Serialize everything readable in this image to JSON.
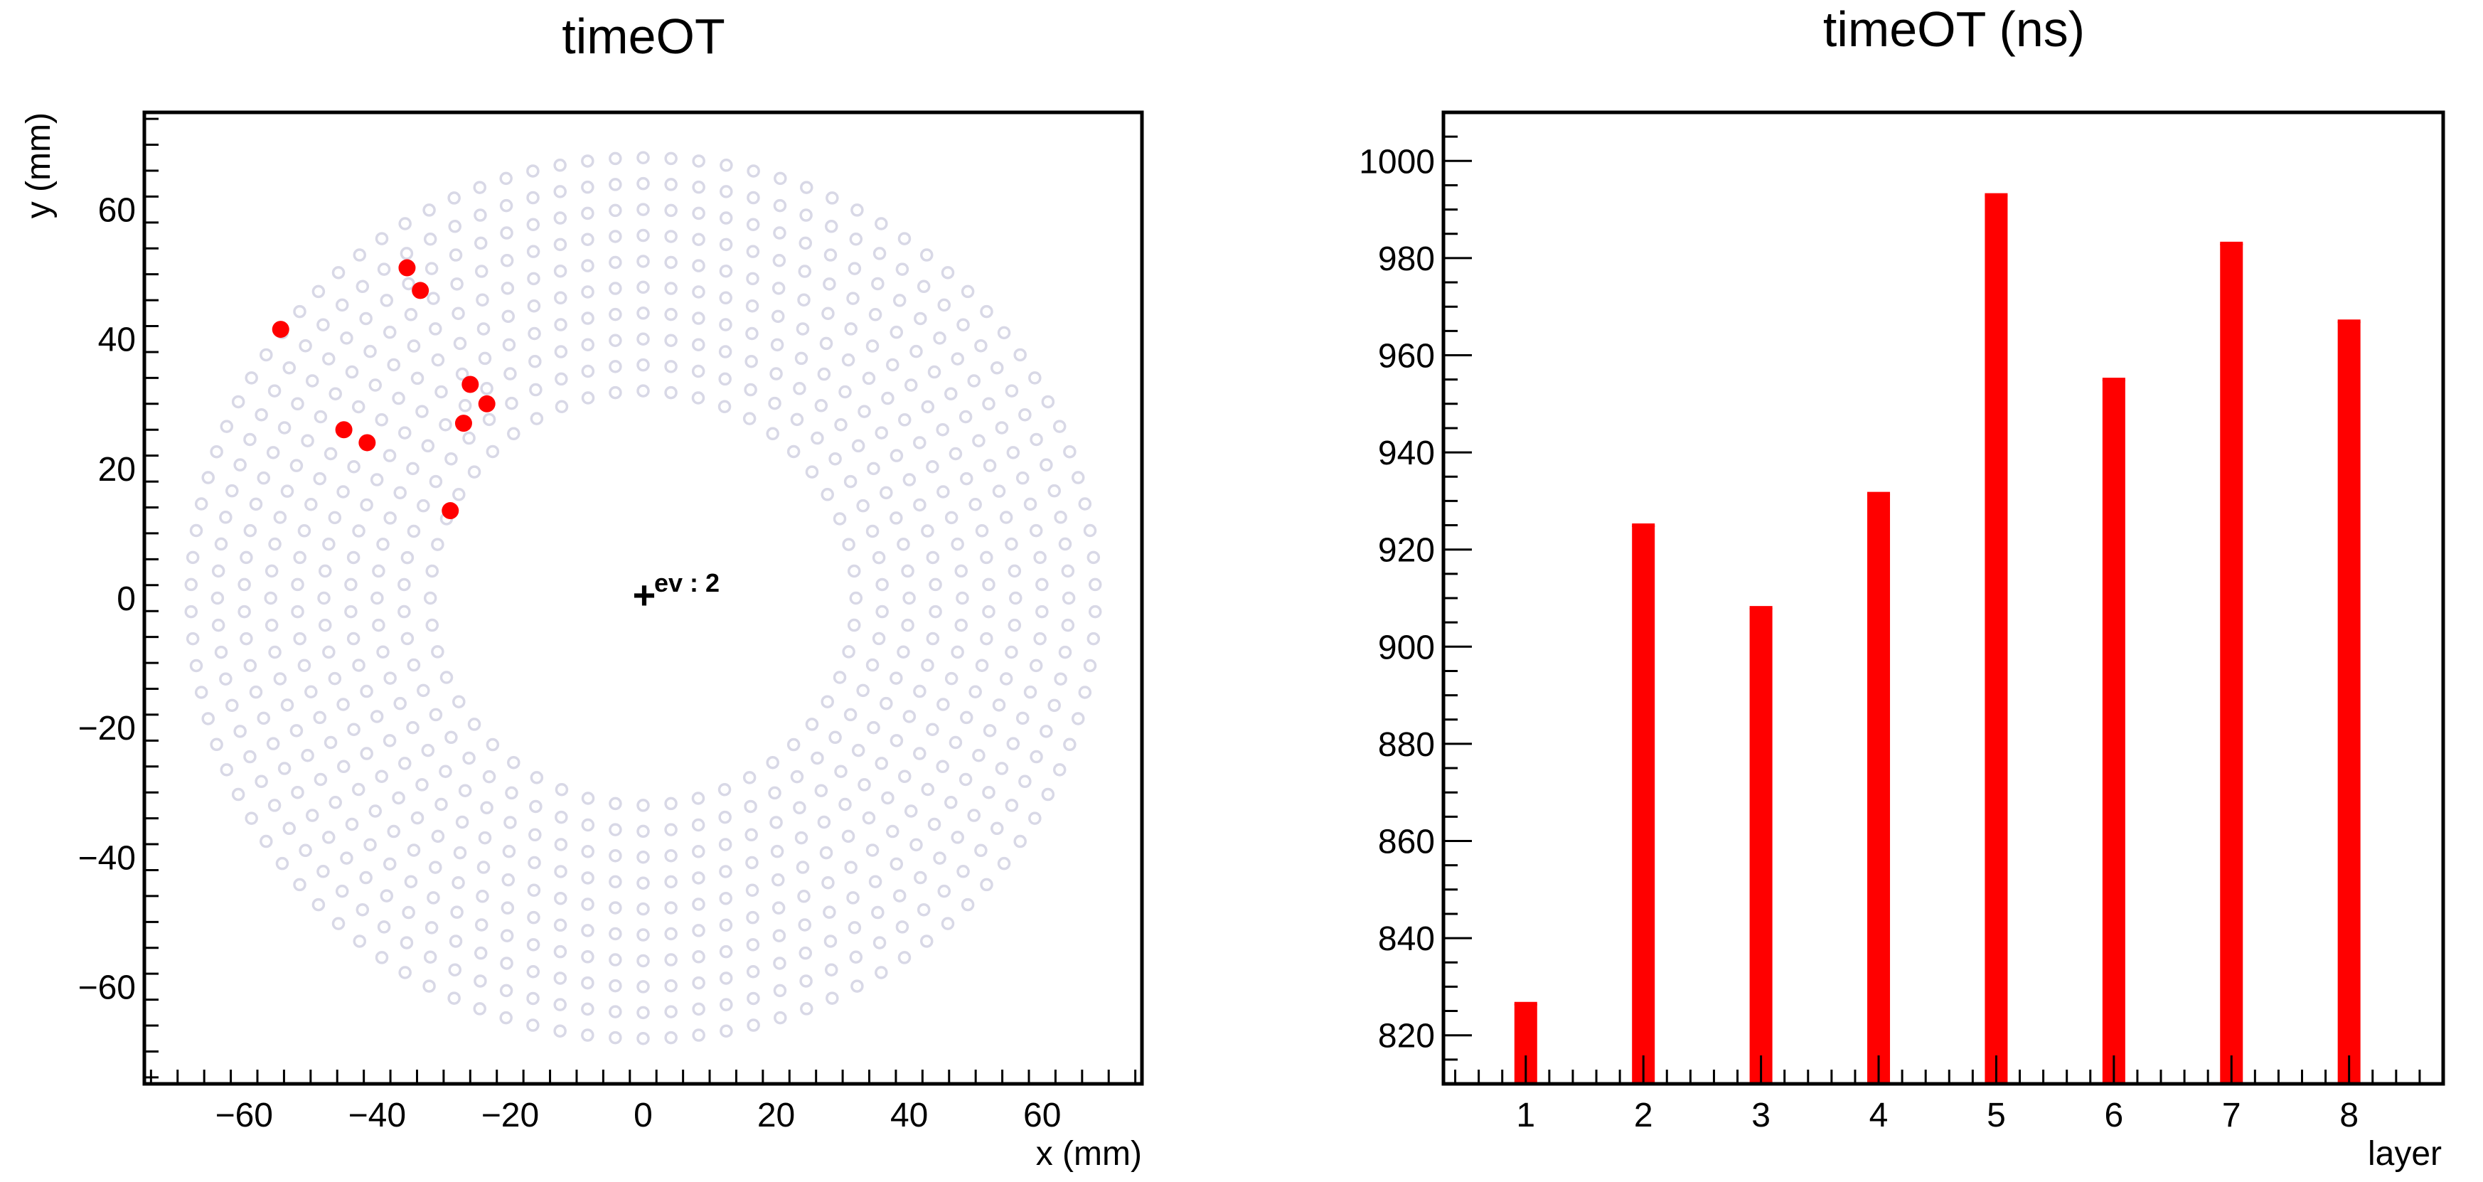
{
  "chart_data": [
    {
      "type": "scatter",
      "title": "timeOT",
      "xlabel": "x (mm)",
      "ylabel": "y (mm)",
      "xlim": [
        -75,
        75
      ],
      "ylim": [
        -75,
        75
      ],
      "xticks": [
        -60,
        -40,
        -20,
        0,
        20,
        40,
        60
      ],
      "yticks": [
        -60,
        -40,
        -20,
        0,
        20,
        40,
        60
      ],
      "grid": false,
      "annotation": {
        "text": "ev : 2",
        "marker": "+",
        "x": 0,
        "y": 0
      },
      "background_rings": {
        "marker": "open-circle",
        "color": "#d8d8e6",
        "radii": [
          32,
          36,
          40,
          44,
          48,
          52,
          56,
          60,
          64,
          68
        ]
      },
      "hits": {
        "color": "#ff0000",
        "points": [
          {
            "x": -54.5,
            "y": 41.5
          },
          {
            "x": -35.5,
            "y": 51
          },
          {
            "x": -33.5,
            "y": 47.5
          },
          {
            "x": -45,
            "y": 26
          },
          {
            "x": -41.5,
            "y": 24
          },
          {
            "x": -26,
            "y": 33
          },
          {
            "x": -23.5,
            "y": 30
          },
          {
            "x": -27,
            "y": 27
          },
          {
            "x": -29,
            "y": 13.5
          }
        ]
      }
    },
    {
      "type": "bar",
      "title": "timeOT (ns)",
      "xlabel": "layer",
      "ylabel": "",
      "categories": [
        "1",
        "2",
        "3",
        "4",
        "5",
        "6",
        "7",
        "8"
      ],
      "values": [
        826.5,
        925,
        908,
        931.5,
        993,
        955,
        983,
        967
      ],
      "ylim": [
        810,
        1010
      ],
      "yticks": [
        820,
        840,
        860,
        880,
        900,
        920,
        940,
        960,
        980,
        1000
      ],
      "xlim": [
        0.3,
        8.8
      ],
      "grid": false,
      "color": "#ff0000"
    }
  ]
}
